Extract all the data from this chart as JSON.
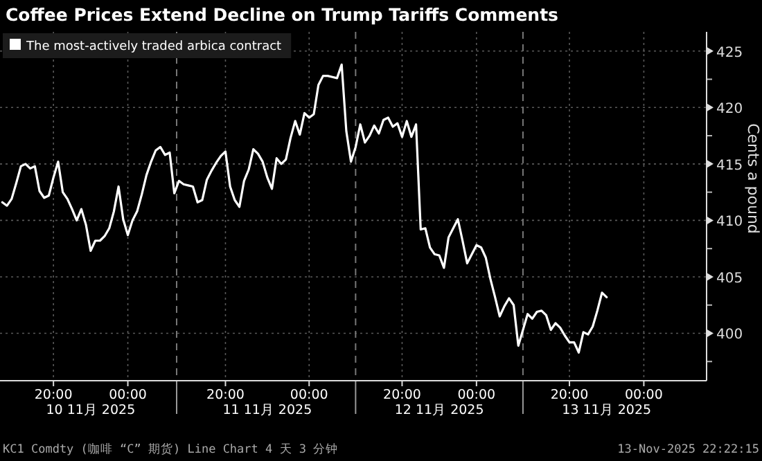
{
  "chart_data": {
    "type": "line",
    "title": "Coffee Prices Extend Decline on Trump Tariffs Comments",
    "ylabel": "Cents a pound",
    "categories": [
      null,
      null,
      null,
      null,
      null,
      null,
      null,
      null,
      null,
      null,
      null,
      "20:00",
      null,
      null,
      null,
      null,
      null,
      null,
      null,
      null,
      null,
      null,
      null,
      null,
      null,
      null,
      null,
      "00:00",
      null,
      null,
      null,
      null,
      null,
      null,
      null,
      null,
      null,
      null,
      null,
      null,
      null,
      null,
      null,
      null,
      null,
      null,
      null,
      null,
      "20:00",
      null,
      null,
      null,
      null,
      null,
      null,
      null,
      null,
      null,
      null,
      null,
      null,
      null,
      null,
      null,
      null,
      null,
      "00:00",
      null,
      null,
      null,
      null,
      null,
      null,
      null,
      null,
      null,
      null,
      null,
      null,
      null,
      null,
      null,
      null,
      null,
      null,
      null,
      "20:00",
      null,
      null,
      null,
      null,
      null,
      null,
      null,
      null,
      null,
      null,
      null,
      null,
      null,
      null,
      null,
      "00:00",
      null,
      null,
      null,
      null,
      null,
      null,
      null,
      null,
      null,
      null,
      null,
      null,
      null,
      null,
      null,
      null,
      null,
      null,
      null,
      "20:00",
      null,
      null,
      null,
      null,
      null,
      null,
      null,
      null,
      null,
      null,
      null,
      null,
      null,
      null,
      null,
      "00:00",
      null,
      null,
      null,
      null,
      null,
      null,
      null,
      null,
      null,
      null,
      null,
      null,
      null
    ],
    "series": [
      {
        "name": "The most-actively traded arbica contract",
        "color": "#ffffff",
        "values": [
          411.6,
          411.3,
          411.9,
          413.3,
          414.8,
          415.0,
          414.6,
          414.8,
          412.6,
          412.0,
          412.2,
          413.8,
          415.2,
          412.5,
          411.9,
          411.0,
          410.0,
          411.0,
          409.6,
          407.3,
          408.2,
          408.2,
          408.6,
          409.3,
          410.8,
          413.0,
          410.1,
          408.7,
          410.0,
          410.8,
          412.3,
          414.0,
          415.2,
          416.2,
          416.5,
          415.8,
          416.0,
          412.4,
          413.5,
          413.2,
          413.1,
          413.0,
          411.6,
          411.8,
          413.6,
          414.4,
          415.1,
          415.7,
          416.1,
          413.0,
          411.8,
          411.2,
          413.5,
          414.5,
          416.3,
          415.9,
          415.2,
          413.8,
          412.8,
          415.5,
          415.0,
          415.4,
          417.3,
          418.8,
          417.6,
          419.5,
          419.1,
          419.4,
          422.0,
          422.8,
          422.8,
          422.7,
          422.6,
          423.8,
          417.9,
          415.2,
          416.5,
          418.5,
          416.9,
          417.5,
          418.4,
          417.7,
          418.9,
          419.1,
          418.3,
          418.6,
          417.4,
          418.8,
          417.4,
          418.5,
          409.2,
          409.3,
          407.6,
          407.0,
          406.9,
          405.8,
          408.5,
          409.3,
          410.1,
          408.2,
          406.2,
          407.0,
          407.8,
          407.6,
          406.7,
          404.8,
          403.2,
          401.5,
          402.4,
          403.1,
          402.5,
          398.9,
          400.3,
          401.7,
          401.3,
          401.9,
          402.0,
          401.6,
          400.3,
          400.9,
          400.5,
          399.8,
          399.2,
          399.2,
          398.3,
          400.1,
          399.9,
          400.6,
          402.0,
          403.6,
          403.2,
          null,
          null,
          null,
          null,
          null,
          null,
          null,
          null,
          null,
          null,
          null,
          null,
          null,
          null,
          null,
          null,
          null,
          null,
          null,
          null,
          null
        ]
      }
    ],
    "ylim": [
      395.8,
      426.7
    ],
    "yticks": [
      {
        "value": 397.5,
        "label": null
      },
      400,
      {
        "value": 402.5,
        "label": null
      },
      405,
      {
        "value": 407.5,
        "label": null
      },
      410,
      {
        "value": 412.5,
        "label": null
      },
      415,
      {
        "value": 417.5,
        "label": null
      },
      420,
      {
        "value": 422.5,
        "label": null
      },
      425
    ],
    "grid": true,
    "legend": "top left",
    "line_style": "solid",
    "marker": "none",
    "annotations": [
      "10 11月 2025",
      "11 11月 2025",
      "12 11月 2025",
      "13 11月 2025",
      "KC1 Comdty (咖啡 “C” 期货) Line Chart 4 天 3 分钟",
      "13-Nov-2025 22:22:15"
    ]
  }
}
